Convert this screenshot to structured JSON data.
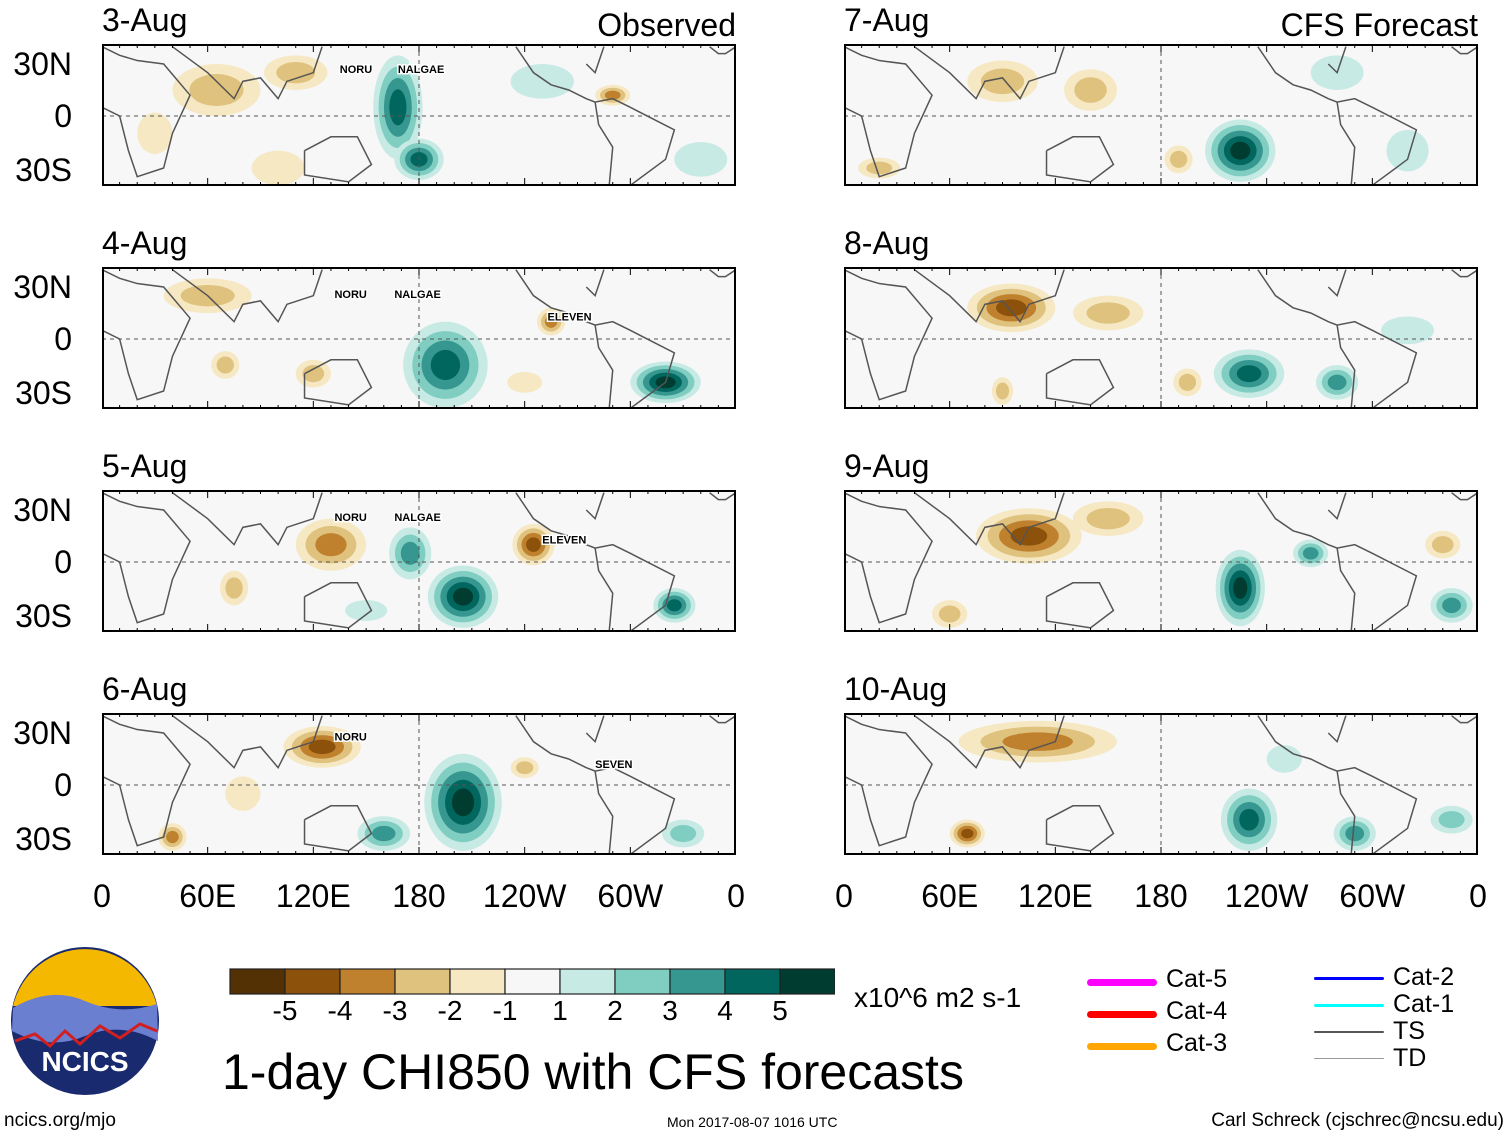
{
  "title": "1-day CHI850 with CFS forecasts",
  "footer": {
    "left": "ncics.org/mjo",
    "center": "Mon 2017-08-07 1016 UTC",
    "right": "Carl Schreck (cjschrec@ncsu.edu)"
  },
  "logo": {
    "text": "NCICS"
  },
  "column_titles": [
    "Observed",
    "CFS Forecast"
  ],
  "lat_labels": [
    "30N",
    "0",
    "30S"
  ],
  "lon_labels": [
    "0",
    "60E",
    "120E",
    "180",
    "120W",
    "60W",
    "0"
  ],
  "colorbar": {
    "unit": "x10^6 m2 s-1",
    "labels": [
      "-5",
      "-4",
      "-3",
      "-2",
      "-1",
      "1",
      "2",
      "3",
      "4",
      "5"
    ],
    "colors": [
      "#543005",
      "#8c510a",
      "#bf812d",
      "#dfc27d",
      "#f6e8c3",
      "#f7f7f7",
      "#c7eae5",
      "#80cdc1",
      "#35978f",
      "#01665e",
      "#003c30"
    ]
  },
  "legend": [
    {
      "label": "Cat-5",
      "color": "#ff00ff"
    },
    {
      "label": "Cat-4",
      "color": "#ff0000"
    },
    {
      "label": "Cat-3",
      "color": "#ffa500"
    },
    {
      "label": "Cat-2",
      "color": "#0000ff"
    },
    {
      "label": "Cat-1",
      "color": "#00ffff"
    },
    {
      "label": "TS",
      "color": "#555555"
    },
    {
      "label": "TD",
      "color": "#999999"
    }
  ],
  "panels": [
    {
      "date": "3-Aug",
      "col": 0,
      "row": 0,
      "storms": [
        {
          "name": "NORU",
          "lon": 135,
          "lat": 27
        },
        {
          "name": "NALGAE",
          "lon": 168,
          "lat": 27
        }
      ],
      "anomalies": [
        [
          168,
          5,
          14,
          30,
          4
        ],
        [
          180,
          -25,
          14,
          12,
          4
        ],
        [
          65,
          15,
          25,
          15,
          -2
        ],
        [
          110,
          25,
          18,
          10,
          -2
        ],
        [
          290,
          12,
          10,
          6,
          -3
        ],
        [
          250,
          20,
          18,
          10,
          1
        ],
        [
          30,
          -10,
          10,
          12,
          -1
        ],
        [
          100,
          -30,
          15,
          10,
          -1
        ],
        [
          340,
          -25,
          15,
          10,
          1
        ]
      ]
    },
    {
      "date": "4-Aug",
      "col": 0,
      "row": 1,
      "storms": [
        {
          "name": "NORU",
          "lon": 132,
          "lat": 26
        },
        {
          "name": "NALGAE",
          "lon": 166,
          "lat": 26
        },
        {
          "name": "ELEVEN",
          "lon": 253,
          "lat": 13
        }
      ],
      "anomalies": [
        [
          195,
          -15,
          24,
          25,
          4
        ],
        [
          320,
          -25,
          20,
          12,
          5
        ],
        [
          255,
          10,
          8,
          8,
          -3
        ],
        [
          60,
          25,
          25,
          10,
          -2
        ],
        [
          70,
          -15,
          8,
          8,
          -2
        ],
        [
          120,
          -20,
          10,
          8,
          -2
        ],
        [
          240,
          -25,
          10,
          6,
          -1
        ]
      ]
    },
    {
      "date": "5-Aug",
      "col": 0,
      "row": 2,
      "storms": [
        {
          "name": "NORU",
          "lon": 132,
          "lat": 26
        },
        {
          "name": "NALGAE",
          "lon": 166,
          "lat": 26
        },
        {
          "name": "ELEVEN",
          "lon": 250,
          "lat": 13
        }
      ],
      "anomalies": [
        [
          205,
          -20,
          20,
          18,
          5
        ],
        [
          175,
          5,
          12,
          15,
          3
        ],
        [
          325,
          -25,
          12,
          10,
          4
        ],
        [
          130,
          10,
          20,
          15,
          -3
        ],
        [
          245,
          10,
          12,
          12,
          -4
        ],
        [
          75,
          -15,
          8,
          10,
          -2
        ],
        [
          150,
          -28,
          12,
          6,
          1
        ]
      ]
    },
    {
      "date": "6-Aug",
      "col": 0,
      "row": 3,
      "storms": [
        {
          "name": "NORU",
          "lon": 132,
          "lat": 28
        },
        {
          "name": "SEVEN",
          "lon": 280,
          "lat": 12
        }
      ],
      "anomalies": [
        [
          205,
          -10,
          22,
          28,
          5
        ],
        [
          125,
          22,
          22,
          12,
          -4
        ],
        [
          160,
          -28,
          15,
          10,
          3
        ],
        [
          330,
          -28,
          12,
          8,
          2
        ],
        [
          40,
          -30,
          8,
          8,
          -3
        ],
        [
          240,
          10,
          8,
          6,
          -2
        ],
        [
          80,
          -5,
          10,
          10,
          -1
        ]
      ]
    },
    {
      "date": "7-Aug",
      "col": 1,
      "row": 0,
      "storms": [],
      "anomalies": [
        [
          225,
          -20,
          20,
          18,
          5
        ],
        [
          90,
          20,
          20,
          12,
          -2
        ],
        [
          140,
          15,
          15,
          12,
          -2
        ],
        [
          190,
          -25,
          8,
          8,
          -2
        ],
        [
          320,
          -20,
          12,
          12,
          1
        ],
        [
          280,
          25,
          15,
          10,
          1
        ],
        [
          20,
          -30,
          12,
          6,
          -2
        ]
      ]
    },
    {
      "date": "8-Aug",
      "col": 1,
      "row": 1,
      "storms": [],
      "anomalies": [
        [
          95,
          18,
          25,
          14,
          -4
        ],
        [
          150,
          15,
          20,
          10,
          -2
        ],
        [
          230,
          -20,
          20,
          14,
          4
        ],
        [
          280,
          -25,
          12,
          10,
          3
        ],
        [
          195,
          -25,
          8,
          8,
          -2
        ],
        [
          90,
          -30,
          6,
          8,
          -2
        ],
        [
          320,
          5,
          15,
          8,
          1
        ]
      ]
    },
    {
      "date": "9-Aug",
      "col": 1,
      "row": 2,
      "storms": [],
      "anomalies": [
        [
          105,
          15,
          30,
          16,
          -4
        ],
        [
          225,
          -15,
          14,
          22,
          5
        ],
        [
          265,
          5,
          10,
          8,
          3
        ],
        [
          345,
          -25,
          12,
          10,
          3
        ],
        [
          60,
          -30,
          10,
          8,
          -2
        ],
        [
          150,
          25,
          20,
          10,
          -2
        ],
        [
          340,
          10,
          10,
          8,
          -2
        ]
      ]
    },
    {
      "date": "10-Aug",
      "col": 1,
      "row": 3,
      "storms": [],
      "anomalies": [
        [
          110,
          25,
          45,
          12,
          -3
        ],
        [
          230,
          -20,
          16,
          18,
          4
        ],
        [
          290,
          -28,
          12,
          10,
          3
        ],
        [
          70,
          -28,
          10,
          8,
          -4
        ],
        [
          345,
          -20,
          12,
          8,
          2
        ],
        [
          250,
          15,
          10,
          8,
          1
        ]
      ]
    }
  ]
}
